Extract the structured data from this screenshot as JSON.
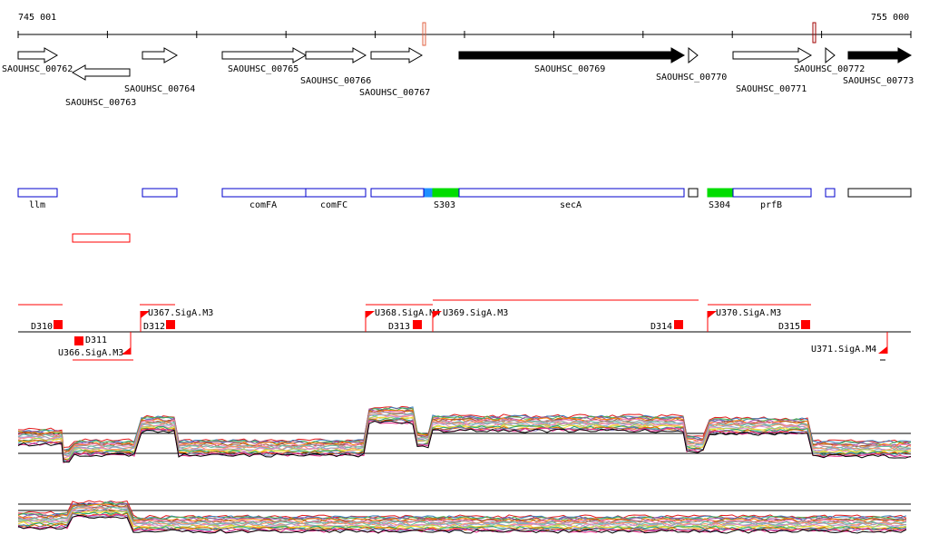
{
  "ruler": {
    "start": "745 001",
    "end": "755 000"
  },
  "genes": [
    {
      "label": "SAOUHSC_00762",
      "strand": "+",
      "fill": "#ffffff"
    },
    {
      "label": "SAOUHSC_00763",
      "strand": "-",
      "fill": "#ffffff"
    },
    {
      "label": "SAOUHSC_00764",
      "strand": "+",
      "fill": "#ffffff"
    },
    {
      "label": "SAOUHSC_00765",
      "strand": "+",
      "fill": "#ffffff"
    },
    {
      "label": "SAOUHSC_00766",
      "strand": "+",
      "fill": "#ffffff"
    },
    {
      "label": "SAOUHSC_00767",
      "strand": "+",
      "fill": "#ffffff"
    },
    {
      "label": "SAOUHSC_00769",
      "strand": "+",
      "fill": "#000000"
    },
    {
      "label": "SAOUHSC_00770",
      "strand": "+",
      "fill": "#ffffff"
    },
    {
      "label": "SAOUHSC_00771",
      "strand": "+",
      "fill": "#ffffff"
    },
    {
      "label": "SAOUHSC_00772",
      "strand": "+",
      "fill": "#ffffff"
    },
    {
      "label": "SAOUHSC_00773",
      "strand": "+",
      "fill": "#000000"
    }
  ],
  "features": [
    {
      "label": "llm"
    },
    {
      "label": ""
    },
    {
      "label": "comFA"
    },
    {
      "label": "comFC"
    },
    {
      "label": ""
    },
    {
      "label": ""
    },
    {
      "label": "S303"
    },
    {
      "label": "secA"
    },
    {
      "label": ""
    },
    {
      "label": "S304"
    },
    {
      "label": "prfB"
    },
    {
      "label": ""
    },
    {
      "label": ""
    }
  ],
  "regulatory": [
    {
      "label": "D310"
    },
    {
      "label": "D311"
    },
    {
      "label": "U366.SigA.M3"
    },
    {
      "label": "U367.SigA.M3"
    },
    {
      "label": "D312"
    },
    {
      "label": "U368.SigA.M4"
    },
    {
      "label": "D313"
    },
    {
      "label": "U369.SigA.M3"
    },
    {
      "label": "D314"
    },
    {
      "label": "U370.SigA.M3"
    },
    {
      "label": "D315"
    },
    {
      "label": "U371.SigA.M4"
    }
  ],
  "colors": {
    "accent": "#ff0000",
    "green": "#00dd00",
    "blue": "#0000cc",
    "lightblue": "#1e90ff"
  }
}
